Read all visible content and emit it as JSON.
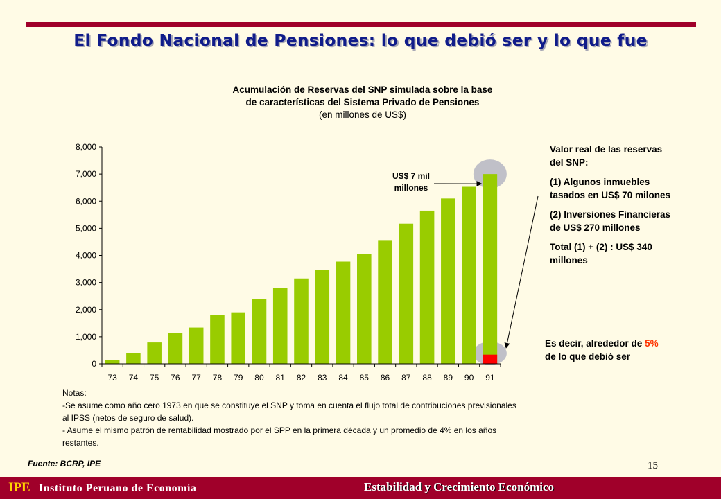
{
  "slide": {
    "title": "El Fondo Nacional de Pensiones: lo que debió ser y lo que fue",
    "page_number": "15",
    "source": "Fuente: BCRP, IPE"
  },
  "chart_data": {
    "type": "bar",
    "title": "Acumulación de Reservas del SNP simulada sobre la base",
    "title_line2": "de características del Sistema Privado de Pensiones",
    "subtitle": "(en millones de US$)",
    "categories": [
      "73",
      "74",
      "75",
      "76",
      "77",
      "78",
      "79",
      "80",
      "81",
      "82",
      "83",
      "84",
      "85",
      "86",
      "87",
      "88",
      "89",
      "90",
      "91"
    ],
    "series": [
      {
        "values": [
          130,
          400,
          790,
          1130,
          1340,
          1800,
          1900,
          2380,
          2800,
          3150,
          3470,
          3770,
          4060,
          4540,
          5170,
          5650,
          6100,
          6530,
          7000
        ]
      },
      {
        "values": [
          0,
          0,
          0,
          0,
          0,
          0,
          0,
          0,
          0,
          0,
          0,
          0,
          0,
          0,
          0,
          0,
          0,
          0,
          340
        ]
      }
    ],
    "ylim": [
      0,
      8000
    ],
    "yticks": [
      "0",
      "1,000",
      "2,000",
      "3,000",
      "4,000",
      "5,000",
      "6,000",
      "7,000",
      "8,000"
    ],
    "grid": false,
    "colors": {
      "bars": "#99cc00",
      "actual": "#ff0000",
      "highlight": "#c0c0c8",
      "axis": "#000000"
    },
    "annotation_line1": "US$ 7 mil",
    "annotation_line2": "millones"
  },
  "side_panel": {
    "heading_line1": "Valor real de las reservas",
    "heading_line2": "del SNP:",
    "item1_line1": "(1) Algunos inmuebles",
    "item1_line2": "tasados en US$ 70 milones",
    "item2_line1": "(2) Inversiones Financieras",
    "item2_line2": "de US$ 270 millones",
    "total_line1": "Total (1) + (2) : US$ 340",
    "total_line2": "millones",
    "summary_prefix": "Es decir, alrededor de ",
    "summary_pct": "5%",
    "summary_line2": "de lo que debió ser"
  },
  "notes": {
    "heading": "Notas:",
    "line1": "-Se asume como año cero 1973 en que se constituye el SNP y toma en cuenta el flujo total de contribuciones previsionales",
    "line2": "al IPSS (netos de seguro de salud).",
    "line3": "- Asume el mismo patrón de rentabilidad mostrado por el SPP  en la primera década y un promedio de 4% en los años",
    "line4": "restantes."
  },
  "footer": {
    "logo": "IPE",
    "organization": "Instituto Peruano de Economía",
    "slogan": "Estabilidad y Crecimiento Económico"
  }
}
